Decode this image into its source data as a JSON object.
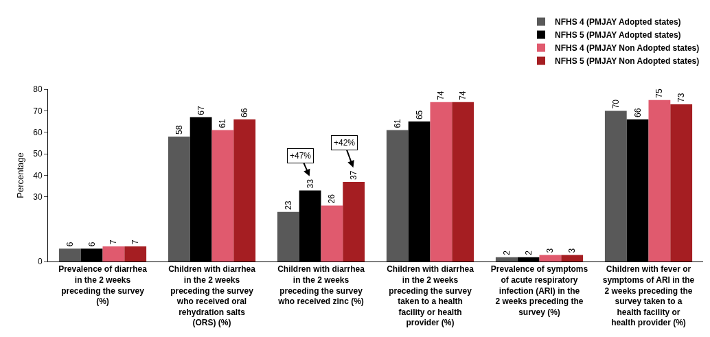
{
  "chart_data": {
    "type": "bar",
    "ylabel": "Percentage",
    "categories": [
      "Prevalence of diarrhea in the 2 weeks preceding the survey (%)",
      "Children with diarrhea in the 2 weeks preceding the survey who received oral rehydration salts (ORS) (%)",
      "Children with diarrhea in the 2 weeks preceding the survey who received zinc (%)",
      "Children with diarrhea in the 2 weeks preceding the survey taken to a health facility or health provider (%)",
      "Prevalence of symptoms of acute respiratory infection (ARI) in the 2 weeks preceding the survey (%)",
      "Children with fever or symptoms of ARI in the 2 weeks preceding the survey taken to a health facility or health provider (%)"
    ],
    "series": [
      {
        "name": "NFHS 4 (PMJAY Adopted states)",
        "color": "#595959",
        "values": [
          6,
          58,
          23,
          61,
          2,
          70
        ]
      },
      {
        "name": "NFHS 5 (PMJAY Adopted states)",
        "color": "#000000",
        "values": [
          6,
          67,
          33,
          65,
          2,
          66
        ]
      },
      {
        "name": "NFHS 4 (PMJAY Non Adopted states)",
        "color": "#e05a6e",
        "values": [
          7,
          61,
          26,
          74,
          3,
          75
        ]
      },
      {
        "name": "NFHS 5 (PMJAY Non Adopted states)",
        "color": "#a51e22",
        "values": [
          7,
          66,
          37,
          74,
          3,
          73
        ]
      }
    ],
    "annotations": [
      "+47%",
      "+42%"
    ],
    "ylim": [
      0,
      80
    ],
    "yticks": [
      0,
      30,
      40,
      50,
      60,
      70,
      80
    ],
    "data_labels": true,
    "grid": false,
    "legend": "top right"
  }
}
